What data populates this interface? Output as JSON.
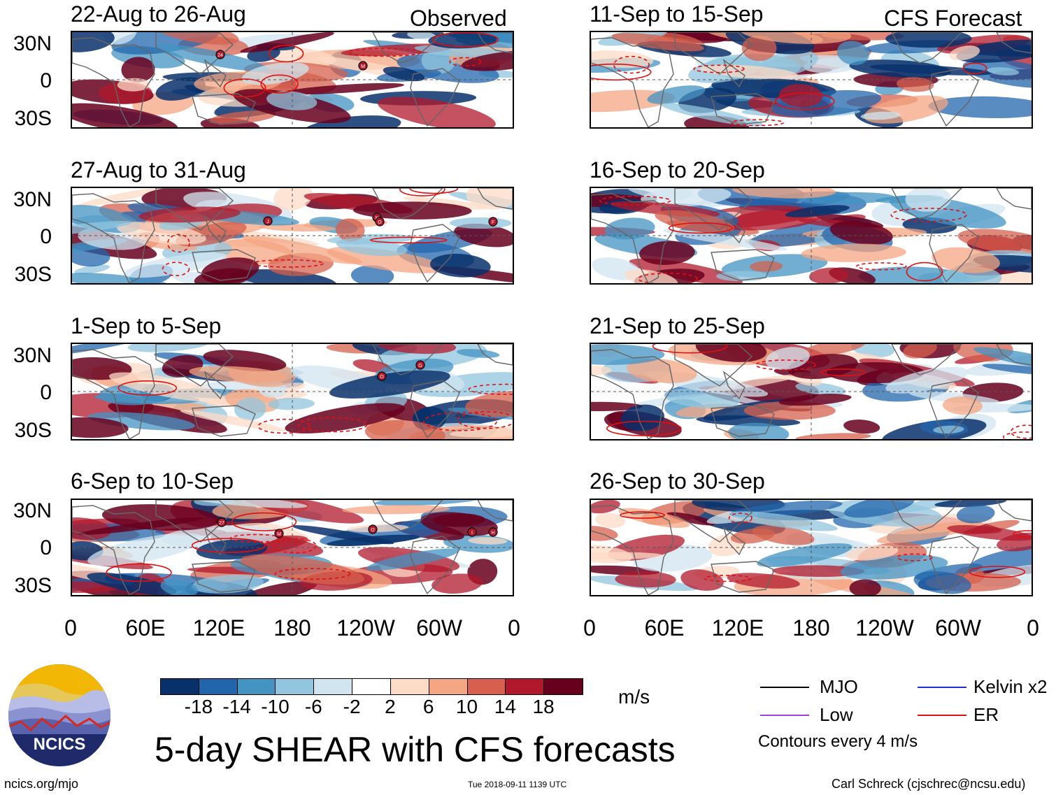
{
  "headers": {
    "left": "Observed",
    "right": "CFS Forecast"
  },
  "observed_panels": [
    {
      "title": "22-Aug to 26-Aug",
      "storms": [
        "24",
        "M"
      ]
    },
    {
      "title": "27-Aug to 31-Aug",
      "storms": [
        "J",
        "N",
        "O",
        "F"
      ]
    },
    {
      "title": "1-Sep to 5-Sep",
      "storms": [
        "O",
        "G"
      ]
    },
    {
      "title": "6-Sep to 10-Sep",
      "storms": [
        "27",
        "M",
        "O",
        "I",
        "H"
      ]
    }
  ],
  "forecast_panels": [
    {
      "title": "11-Sep to 15-Sep"
    },
    {
      "title": "16-Sep to 20-Sep"
    },
    {
      "title": "21-Sep to 25-Sep"
    },
    {
      "title": "26-Sep to 30-Sep"
    }
  ],
  "lat_labels": [
    "30N",
    "0",
    "30S"
  ],
  "lon_labels": [
    "0",
    "60E",
    "120E",
    "180",
    "120W",
    "60W",
    "0"
  ],
  "colorbar": {
    "ticks": [
      "-18",
      "-14",
      "-10",
      "-6",
      "-2",
      "2",
      "6",
      "10",
      "14",
      "18"
    ],
    "colors": [
      "#08306b",
      "#2166ac",
      "#4393c3",
      "#92c5de",
      "#d1e5f0",
      "#ffffff",
      "#fddbc7",
      "#f4a582",
      "#d6604d",
      "#b2182b",
      "#67001f"
    ],
    "units": "m/s"
  },
  "legend": {
    "items": [
      {
        "label": "MJO",
        "color": "#000000"
      },
      {
        "label": "Kelvin x2",
        "color": "#1f2fd0"
      },
      {
        "label": "Low",
        "color": "#a040e0"
      },
      {
        "label": "ER",
        "color": "#e01010"
      }
    ],
    "note": "Contours every 4 m/s"
  },
  "main_title": "5-day SHEAR with CFS forecasts",
  "logo_text": "NCICS",
  "footer": {
    "url": "ncics.org/mjo",
    "timestamp": "Tue 2018-09-11 1139 UTC",
    "credit": "Carl Schreck (cjschrec@ncsu.edu)"
  }
}
